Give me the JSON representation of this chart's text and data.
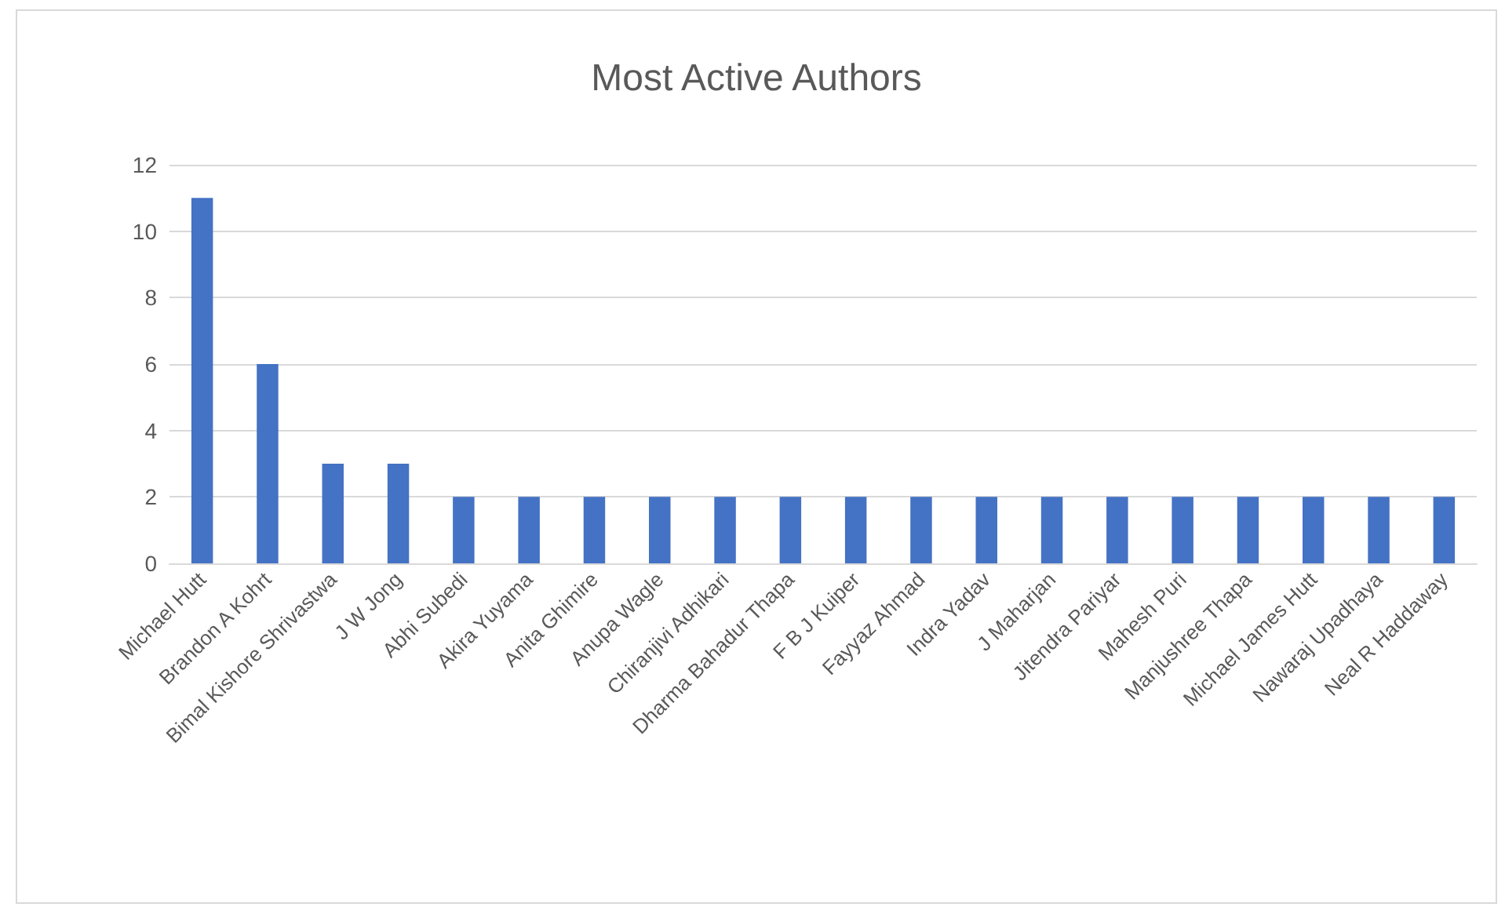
{
  "chart_data": {
    "type": "bar",
    "title": "Most Active Authors",
    "categories": [
      "Michael Hutt",
      "Brandon A Kohrt",
      "Bimal Kishore Shrivastwa",
      "J W Jong",
      "Abhi Subedi",
      "Akira Yuyama",
      "Anita Ghimire",
      "Anupa Wagle",
      "Chiranjivi Adhikari",
      "Dharma Bahadur Thapa",
      "F B J Kuiper",
      "Fayyaz Ahmad",
      "Indra Yadav",
      "J Maharjan",
      "Jitendra Pariyar",
      "Mahesh Puri",
      "Manjushree Thapa",
      "Michael James Hutt",
      "Nawaraj Upadhaya",
      "Neal R Haddaway"
    ],
    "values": [
      11,
      6,
      3,
      3,
      2,
      2,
      2,
      2,
      2,
      2,
      2,
      2,
      2,
      2,
      2,
      2,
      2,
      2,
      2,
      2
    ],
    "color": "#4472c4",
    "ylim": [
      0,
      12
    ],
    "yticks": [
      0,
      2,
      4,
      6,
      8,
      10,
      12
    ],
    "grid": "y"
  }
}
